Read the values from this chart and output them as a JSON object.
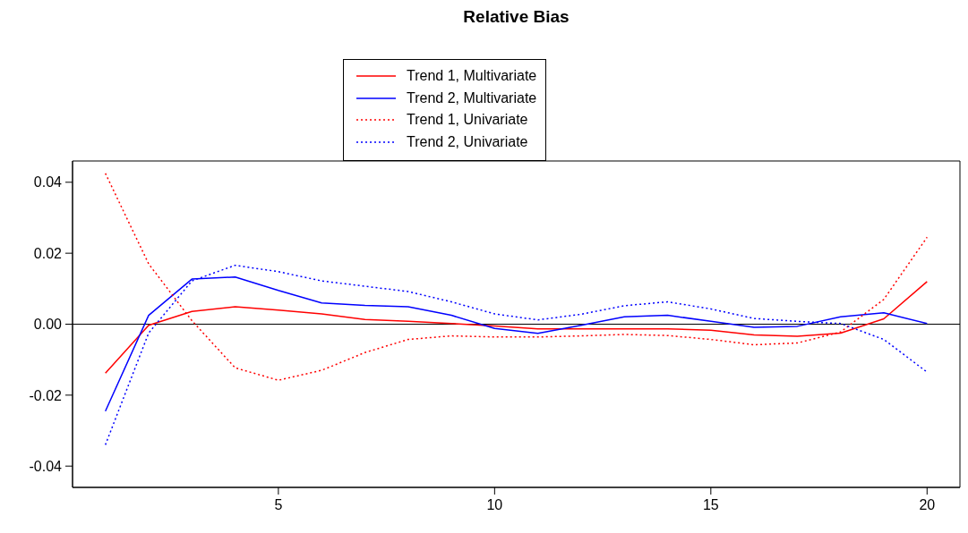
{
  "chart_data": {
    "type": "line",
    "title": "Relative Bias",
    "x": [
      1,
      2,
      3,
      4,
      5,
      6,
      7,
      8,
      9,
      10,
      11,
      12,
      13,
      14,
      15,
      16,
      17,
      18,
      19,
      20
    ],
    "series": [
      {
        "name": "Trend 1, Multivariate",
        "color": "#ff0000",
        "line_style": "solid",
        "values": [
          -0.0138,
          -0.0003,
          0.0036,
          0.0049,
          0.004,
          0.0029,
          0.0013,
          0.0008,
          0.0002,
          -0.0005,
          -0.0013,
          -0.0013,
          -0.0013,
          -0.0013,
          -0.0017,
          -0.003,
          -0.0034,
          -0.0025,
          0.0015,
          0.012
        ]
      },
      {
        "name": "Trend 2, Multivariate",
        "color": "#0000ff",
        "line_style": "solid",
        "values": [
          -0.0245,
          0.0025,
          0.0127,
          0.0133,
          0.0095,
          0.006,
          0.0053,
          0.0049,
          0.0025,
          -0.0012,
          -0.0026,
          -0.0003,
          0.0021,
          0.0025,
          0.0008,
          -0.0009,
          -0.0006,
          0.0021,
          0.0032,
          0.0002
        ]
      },
      {
        "name": "Trend 1, Univariate",
        "color": "#ff0000",
        "line_style": "dotted",
        "values": [
          0.0425,
          0.017,
          0.001,
          -0.0123,
          -0.0158,
          -0.013,
          -0.008,
          -0.0043,
          -0.0033,
          -0.0036,
          -0.0036,
          -0.0033,
          -0.0029,
          -0.0032,
          -0.0043,
          -0.0058,
          -0.0053,
          -0.0022,
          0.007,
          0.0245
        ]
      },
      {
        "name": "Trend 2, Univariate",
        "color": "#0000ff",
        "line_style": "dotted",
        "values": [
          -0.034,
          -0.0025,
          0.0122,
          0.0166,
          0.0148,
          0.0122,
          0.0107,
          0.0092,
          0.0063,
          0.0029,
          0.0012,
          0.0028,
          0.0052,
          0.0063,
          0.0043,
          0.0016,
          0.0008,
          0.0002,
          -0.0043,
          -0.0135
        ]
      }
    ],
    "xlim": [
      0.24,
      20.76
    ],
    "xticks": [
      5,
      10,
      15,
      20
    ],
    "ylim": [
      -0.046,
      0.046
    ],
    "yticks": [
      -0.04,
      -0.02,
      {
        "value": 0,
        "label": "0.00"
      },
      0.02,
      0.04
    ],
    "ref_lines": [
      {
        "axis": "y",
        "value": 0,
        "color": "#000000"
      }
    ],
    "grid": false,
    "legend": "top",
    "marker": "none"
  }
}
